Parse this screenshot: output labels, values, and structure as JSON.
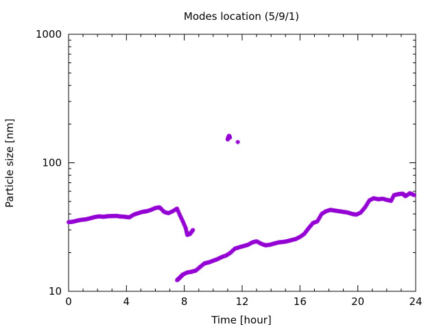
{
  "chart_data": {
    "type": "scatter",
    "title": "Modes location (5/9/1)",
    "xlabel": "Time [hour]",
    "ylabel": "Particle size [nm]",
    "xlim": [
      0,
      24
    ],
    "ylim": [
      10,
      1000
    ],
    "yscale": "log",
    "grid": false,
    "legend": "none",
    "x_ticks": [
      0,
      4,
      8,
      12,
      16,
      20,
      24
    ],
    "x_tick_labels": [
      "0",
      "4",
      "8",
      "12",
      "16",
      "20",
      "24"
    ],
    "y_ticks": [
      10,
      100,
      1000
    ],
    "y_tick_labels": [
      "10",
      "100",
      "1000"
    ],
    "marker_color": "#9400d3",
    "series": [
      {
        "name": "",
        "points": [
          [
            0.0,
            34.5
          ],
          [
            0.3,
            34.8
          ],
          [
            0.6,
            35.5
          ],
          [
            0.9,
            36.0
          ],
          [
            1.2,
            36.3
          ],
          [
            1.5,
            37.0
          ],
          [
            1.8,
            37.8
          ],
          [
            2.1,
            38.3
          ],
          [
            2.4,
            38.0
          ],
          [
            2.7,
            38.4
          ],
          [
            3.0,
            38.5
          ],
          [
            3.3,
            38.6
          ],
          [
            3.6,
            38.2
          ],
          [
            3.9,
            38.0
          ],
          [
            4.2,
            37.6
          ],
          [
            4.5,
            39.5
          ],
          [
            4.8,
            40.5
          ],
          [
            5.1,
            41.5
          ],
          [
            5.4,
            42.0
          ],
          [
            5.7,
            43.0
          ],
          [
            6.0,
            44.5
          ],
          [
            6.3,
            45.0
          ],
          [
            6.6,
            41.5
          ],
          [
            6.9,
            40.5
          ],
          [
            7.2,
            42.0
          ],
          [
            7.5,
            44.0
          ],
          [
            7.7,
            39.0
          ],
          [
            7.9,
            35.0
          ],
          [
            8.1,
            31.0
          ],
          [
            8.2,
            27.5
          ],
          [
            8.4,
            28.0
          ],
          [
            8.6,
            30.0
          ],
          [
            7.5,
            12.2
          ],
          [
            7.7,
            12.8
          ],
          [
            7.9,
            13.5
          ],
          [
            8.2,
            14.0
          ],
          [
            8.5,
            14.2
          ],
          [
            8.8,
            14.5
          ],
          [
            9.1,
            15.5
          ],
          [
            9.4,
            16.5
          ],
          [
            9.7,
            16.8
          ],
          [
            10.0,
            17.3
          ],
          [
            10.3,
            17.8
          ],
          [
            10.6,
            18.5
          ],
          [
            10.9,
            19.0
          ],
          [
            11.2,
            20.0
          ],
          [
            11.5,
            21.5
          ],
          [
            11.8,
            22.0
          ],
          [
            12.1,
            22.5
          ],
          [
            12.4,
            23.0
          ],
          [
            12.7,
            24.0
          ],
          [
            13.0,
            24.5
          ],
          [
            13.3,
            23.5
          ],
          [
            13.6,
            22.8
          ],
          [
            13.9,
            23.0
          ],
          [
            14.2,
            23.5
          ],
          [
            14.5,
            24.0
          ],
          [
            14.8,
            24.2
          ],
          [
            15.1,
            24.5
          ],
          [
            15.4,
            25.0
          ],
          [
            15.7,
            25.5
          ],
          [
            16.0,
            26.5
          ],
          [
            16.3,
            28.0
          ],
          [
            16.6,
            31.0
          ],
          [
            16.9,
            34.0
          ],
          [
            17.2,
            35.0
          ],
          [
            17.5,
            40.0
          ],
          [
            17.8,
            42.0
          ],
          [
            18.1,
            43.0
          ],
          [
            18.4,
            42.5
          ],
          [
            18.7,
            42.0
          ],
          [
            19.0,
            41.5
          ],
          [
            19.3,
            41.0
          ],
          [
            19.6,
            40.0
          ],
          [
            19.9,
            39.5
          ],
          [
            20.2,
            41.0
          ],
          [
            20.5,
            45.0
          ],
          [
            20.8,
            51.0
          ],
          [
            21.1,
            53.0
          ],
          [
            21.4,
            52.0
          ],
          [
            21.7,
            52.5
          ],
          [
            22.0,
            51.5
          ],
          [
            22.3,
            50.5
          ],
          [
            22.5,
            56.0
          ],
          [
            22.8,
            57.0
          ],
          [
            23.1,
            57.5
          ],
          [
            23.3,
            55.0
          ],
          [
            23.6,
            58.0
          ],
          [
            23.9,
            56.0
          ],
          [
            11.0,
            152
          ],
          [
            11.05,
            158
          ],
          [
            11.1,
            162
          ],
          [
            11.15,
            157
          ],
          [
            11.7,
            145
          ]
        ]
      }
    ]
  }
}
